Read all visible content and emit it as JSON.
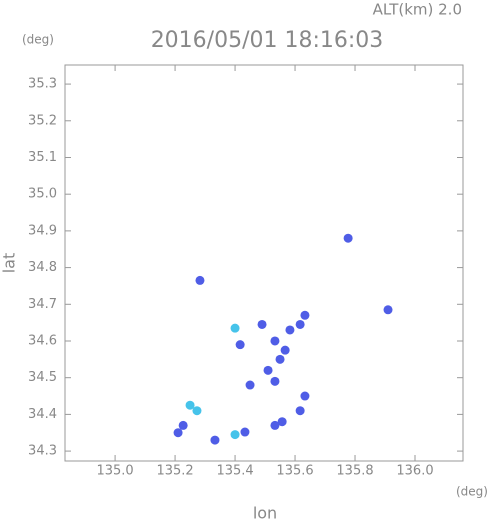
{
  "chart_data": {
    "type": "scatter",
    "title": "2016/05/01 18:16:03",
    "subtitle": "ALT(km) 2.0",
    "x_label": "lon",
    "y_label": "lat",
    "x_unit": "(deg)",
    "y_unit": "(deg)",
    "xlim": [
      134.833,
      136.16
    ],
    "ylim": [
      34.273,
      35.352
    ],
    "xticks": [
      {
        "value": 135.0,
        "label": "135.0"
      },
      135.2,
      135.4,
      135.6,
      135.8,
      {
        "value": 136.0,
        "label": "136.0"
      }
    ],
    "yticks": [
      34.3,
      34.4,
      34.5,
      34.6,
      34.7,
      34.8,
      34.9,
      {
        "value": 35.0,
        "label": "35.0"
      },
      35.1,
      35.2,
      35.3
    ],
    "series": [
      {
        "color": "#4f5de6",
        "x": [
          135.21,
          135.227,
          135.433,
          135.533,
          135.557,
          135.617,
          135.633,
          135.533,
          135.55,
          135.533,
          135.567,
          135.51,
          135.583,
          135.617,
          135.633,
          135.49,
          135.417,
          135.283,
          135.777,
          135.91,
          135.45,
          135.333
        ],
        "values": [
          34.35,
          34.37,
          34.352,
          34.37,
          34.38,
          34.41,
          34.45,
          34.49,
          34.55,
          34.6,
          34.575,
          34.52,
          34.63,
          34.645,
          34.67,
          34.645,
          34.59,
          34.765,
          34.88,
          34.685,
          34.48,
          34.33
        ]
      },
      {
        "color": "#46c3ea",
        "x": [
          135.25,
          135.273,
          135.4,
          135.4
        ],
        "values": [
          34.425,
          34.41,
          34.345,
          34.635
        ]
      }
    ]
  }
}
